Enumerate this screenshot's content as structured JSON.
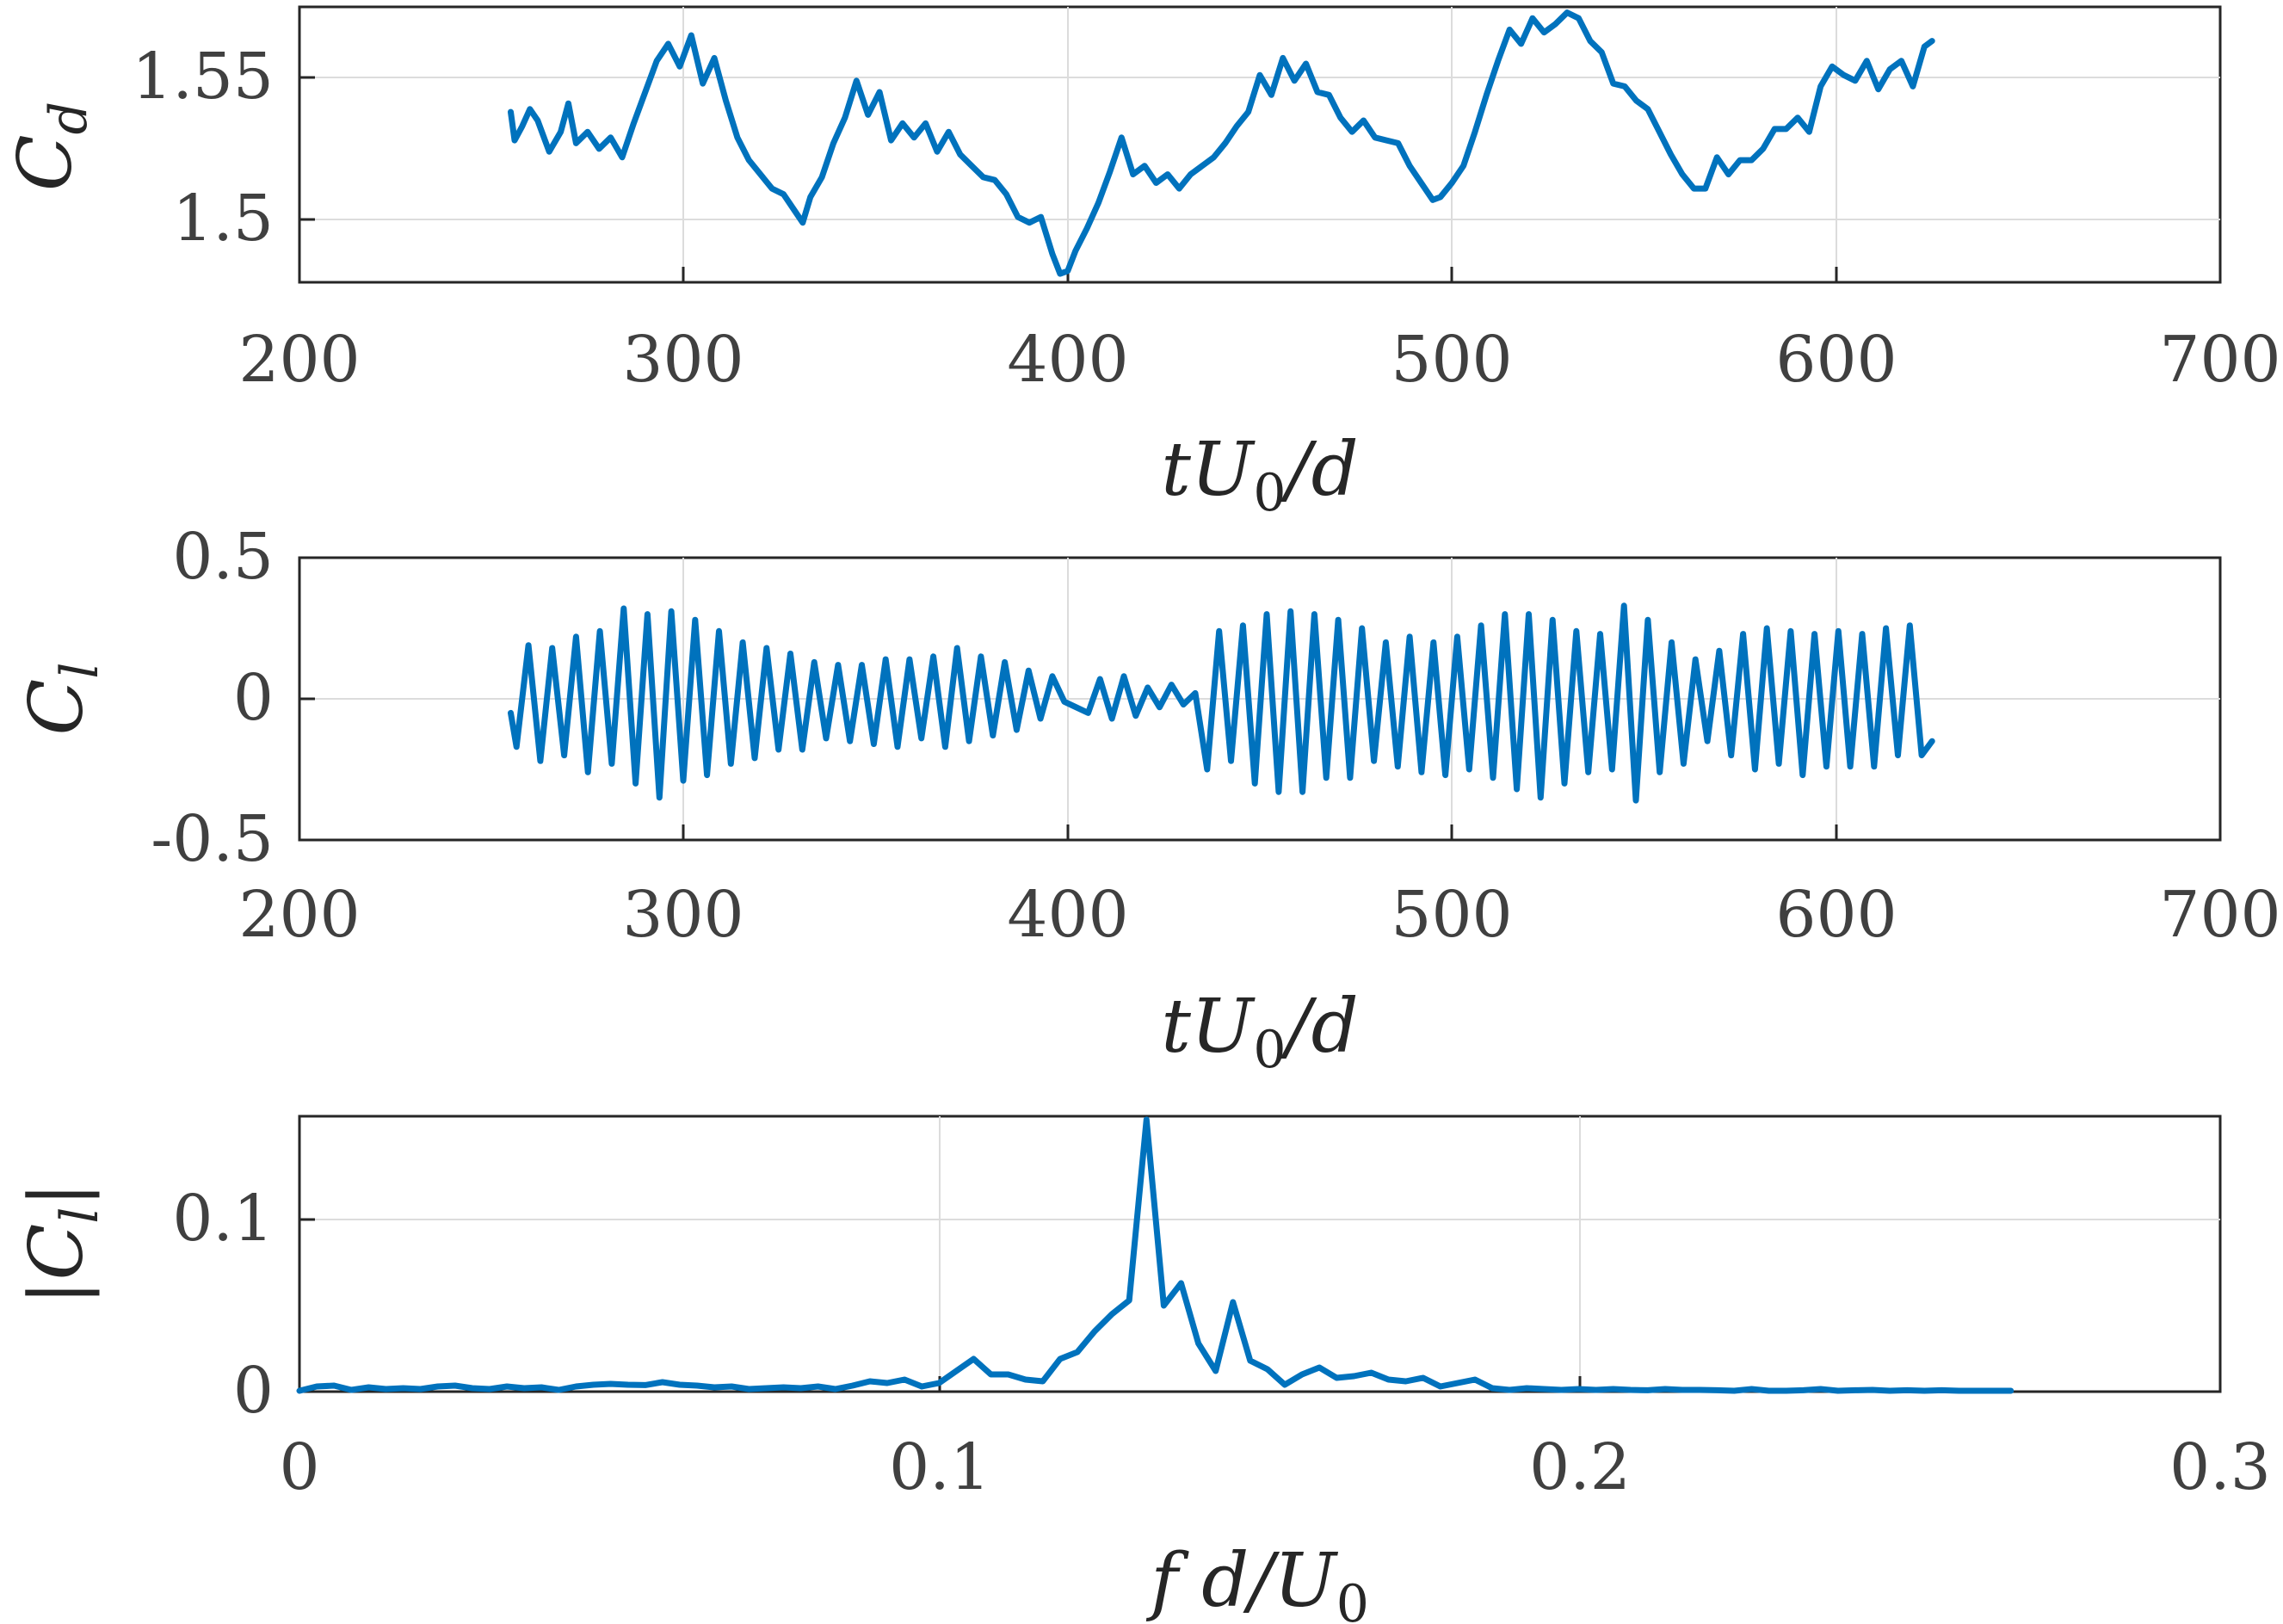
{
  "style": {
    "line_color": "#0072bd",
    "grid": "on"
  },
  "chart_data": [
    {
      "type": "line",
      "id": "cd",
      "xlabel": "tU_0/d",
      "ylabel": "C_d",
      "xlim": [
        200,
        700
      ],
      "ylim": [
        1.478,
        1.575
      ],
      "xticks": [
        200,
        300,
        400,
        500,
        600,
        700
      ],
      "xtick_labels": [
        "200",
        "300",
        "400",
        "500",
        "600",
        "700"
      ],
      "yticks": [
        1.5,
        1.55
      ],
      "ytick_labels": [
        "1.5",
        "1.55"
      ],
      "series": [
        {
          "x": [
            255,
            256,
            258,
            260,
            262,
            265,
            268,
            270,
            272,
            275,
            278,
            281,
            284,
            287,
            290,
            293,
            296,
            299,
            302,
            305,
            308,
            311,
            314,
            317,
            320,
            323,
            326,
            329,
            331,
            333,
            336,
            339,
            342,
            345,
            348,
            351,
            354,
            357,
            360,
            363,
            366,
            369,
            372,
            375,
            378,
            381,
            384,
            387,
            390,
            393,
            396,
            398,
            400,
            402,
            405,
            408,
            411,
            414,
            417,
            420,
            423,
            426,
            429,
            432,
            435,
            438,
            441,
            444,
            447,
            450,
            453,
            456,
            459,
            462,
            465,
            468,
            471,
            474,
            477,
            480,
            483,
            486,
            489,
            492,
            495,
            497,
            500,
            503,
            506,
            509,
            512,
            515,
            518,
            521,
            524,
            527,
            530,
            533,
            536,
            539,
            542,
            545,
            548,
            551,
            554,
            557,
            560,
            563,
            566,
            569,
            572,
            575,
            578,
            581,
            584,
            587,
            590,
            593,
            596,
            599,
            602,
            605,
            608,
            611,
            614,
            617,
            620,
            623,
            625
          ],
          "y": [
            1.538,
            1.528,
            1.533,
            1.539,
            1.535,
            1.524,
            1.531,
            1.541,
            1.527,
            1.531,
            1.525,
            1.529,
            1.522,
            1.534,
            1.545,
            1.556,
            1.562,
            1.554,
            1.565,
            1.548,
            1.557,
            1.542,
            1.529,
            1.521,
            1.516,
            1.511,
            1.509,
            1.503,
            1.499,
            1.508,
            1.515,
            1.527,
            1.536,
            1.549,
            1.537,
            1.545,
            1.528,
            1.534,
            1.529,
            1.534,
            1.524,
            1.531,
            1.523,
            1.519,
            1.515,
            1.514,
            1.509,
            1.501,
            1.499,
            1.501,
            1.488,
            1.481,
            1.482,
            1.489,
            1.497,
            1.506,
            1.517,
            1.529,
            1.516,
            1.519,
            1.513,
            1.516,
            1.511,
            1.516,
            1.519,
            1.522,
            1.527,
            1.533,
            1.538,
            1.551,
            1.544,
            1.557,
            1.549,
            1.555,
            1.545,
            1.544,
            1.536,
            1.531,
            1.535,
            1.529,
            1.528,
            1.527,
            1.519,
            1.513,
            1.507,
            1.508,
            1.513,
            1.519,
            1.531,
            1.544,
            1.556,
            1.567,
            1.562,
            1.571,
            1.566,
            1.569,
            1.573,
            1.571,
            1.563,
            1.559,
            1.548,
            1.547,
            1.542,
            1.539,
            1.531,
            1.523,
            1.516,
            1.511,
            1.511,
            1.522,
            1.516,
            1.521,
            1.521,
            1.525,
            1.532,
            1.532,
            1.536,
            1.531,
            1.547,
            1.554,
            1.551,
            1.549,
            1.556,
            1.546,
            1.553,
            1.556,
            1.547,
            1.561,
            1.563
          ]
        }
      ]
    },
    {
      "type": "line",
      "id": "cl",
      "xlabel": "tU_0/d",
      "ylabel": "C_l",
      "xlim": [
        200,
        700
      ],
      "ylim": [
        -0.5,
        0.5
      ],
      "xticks": [
        200,
        300,
        400,
        500,
        600,
        700
      ],
      "xtick_labels": [
        "200",
        "300",
        "400",
        "500",
        "600",
        "700"
      ],
      "yticks": [
        -0.5,
        0,
        0.5
      ],
      "ytick_labels": [
        "-0.5",
        "0",
        "0.5"
      ],
      "series": [
        {
          "x": [
            255,
            256.5,
            259.6,
            262.7,
            265.8,
            268.9,
            272.0,
            275.1,
            278.2,
            281.3,
            284.4,
            287.5,
            290.6,
            293.7,
            296.8,
            299.9,
            303.0,
            306.1,
            309.2,
            312.3,
            315.4,
            318.5,
            321.6,
            324.7,
            327.8,
            330.9,
            334.0,
            337.1,
            340.2,
            343.3,
            346.4,
            349.5,
            352.6,
            355.7,
            358.8,
            361.9,
            365.0,
            368.1,
            371.2,
            374.3,
            377.4,
            380.5,
            383.6,
            386.7,
            389.8,
            392.9,
            396.0,
            399.1,
            402.2,
            405.3,
            408.4,
            411.5,
            414.6,
            417.7,
            420.8,
            423.9,
            427.0,
            430.1,
            433.2,
            436.3,
            439.4,
            442.5,
            445.6,
            448.7,
            451.8,
            454.9,
            458.0,
            461.1,
            464.2,
            467.3,
            470.4,
            473.5,
            476.6,
            479.7,
            482.8,
            485.9,
            489.0,
            492.1,
            495.2,
            498.3,
            501.4,
            504.5,
            507.6,
            510.7,
            513.8,
            516.9,
            520.0,
            523.1,
            526.2,
            529.3,
            532.4,
            535.5,
            538.6,
            541.7,
            544.8,
            547.9,
            551.0,
            554.1,
            557.2,
            560.3,
            563.4,
            566.5,
            569.6,
            572.7,
            575.8,
            578.9,
            582.0,
            585.1,
            588.2,
            591.3,
            594.4,
            597.5,
            600.6,
            603.7,
            606.8,
            609.9,
            613.0,
            616.1,
            619.2,
            622.3,
            625
          ],
          "y": [
            -0.05,
            -0.17,
            0.19,
            -0.22,
            0.18,
            -0.2,
            0.22,
            -0.26,
            0.24,
            -0.23,
            0.32,
            -0.3,
            0.3,
            -0.35,
            0.31,
            -0.29,
            0.28,
            -0.27,
            0.24,
            -0.23,
            0.2,
            -0.21,
            0.18,
            -0.18,
            0.16,
            -0.18,
            0.13,
            -0.14,
            0.12,
            -0.15,
            0.12,
            -0.16,
            0.14,
            -0.17,
            0.14,
            -0.14,
            0.15,
            -0.17,
            0.18,
            -0.15,
            0.15,
            -0.13,
            0.13,
            -0.11,
            0.1,
            -0.07,
            0.08,
            -0.01,
            -0.03,
            -0.05,
            0.07,
            -0.07,
            0.08,
            -0.06,
            0.04,
            -0.03,
            0.05,
            -0.02,
            0.02,
            -0.25,
            0.24,
            -0.22,
            0.26,
            -0.3,
            0.3,
            -0.33,
            0.31,
            -0.33,
            0.3,
            -0.28,
            0.28,
            -0.28,
            0.25,
            -0.22,
            0.2,
            -0.24,
            0.22,
            -0.26,
            0.2,
            -0.27,
            0.22,
            -0.25,
            0.26,
            -0.28,
            0.3,
            -0.32,
            0.3,
            -0.35,
            0.28,
            -0.3,
            0.24,
            -0.26,
            0.23,
            -0.25,
            0.33,
            -0.36,
            0.28,
            -0.26,
            0.2,
            -0.23,
            0.14,
            -0.15,
            0.17,
            -0.2,
            0.23,
            -0.25,
            0.25,
            -0.23,
            0.24,
            -0.27,
            0.23,
            -0.24,
            0.24,
            -0.24,
            0.23,
            -0.24,
            0.25,
            -0.2,
            0.26,
            -0.2,
            -0.15
          ]
        }
      ]
    },
    {
      "type": "line",
      "id": "spectrum",
      "xlabel": "fd/U_0",
      "ylabel": "|C_l|",
      "xlim": [
        0,
        0.3
      ],
      "ylim": [
        0,
        0.16
      ],
      "xticks": [
        0,
        0.1,
        0.2,
        0.3
      ],
      "xtick_labels": [
        "0",
        "0.1",
        "0.2",
        "0.3"
      ],
      "yticks": [
        0,
        0.1
      ],
      "ytick_labels": [
        "0",
        "0.1"
      ],
      "series": [
        {
          "x": [
            0,
            0.0027,
            0.0054,
            0.0081,
            0.0108,
            0.0135,
            0.0162,
            0.0189,
            0.0216,
            0.0243,
            0.027,
            0.0297,
            0.0324,
            0.0351,
            0.0378,
            0.0405,
            0.0432,
            0.0459,
            0.0486,
            0.0513,
            0.054,
            0.0567,
            0.0594,
            0.0621,
            0.0648,
            0.0675,
            0.0702,
            0.0729,
            0.0756,
            0.0783,
            0.081,
            0.0837,
            0.0864,
            0.0891,
            0.0918,
            0.0945,
            0.0972,
            0.0999,
            0.1026,
            0.1053,
            0.108,
            0.1107,
            0.1134,
            0.1161,
            0.1188,
            0.1215,
            0.1242,
            0.1269,
            0.1296,
            0.1323,
            0.135,
            0.1377,
            0.1404,
            0.1431,
            0.1458,
            0.1485,
            0.1512,
            0.1539,
            0.1566,
            0.1593,
            0.162,
            0.1647,
            0.1674,
            0.1701,
            0.1728,
            0.1755,
            0.1782,
            0.1809,
            0.1836,
            0.1863,
            0.189,
            0.1917,
            0.1944,
            0.1971,
            0.1998,
            0.2025,
            0.2052,
            0.2079,
            0.2106,
            0.2133,
            0.216,
            0.2187,
            0.2214,
            0.2241,
            0.2268,
            0.2295,
            0.2322,
            0.2349,
            0.2376,
            0.2403,
            0.243,
            0.2457,
            0.2484,
            0.2511,
            0.2538,
            0.2565,
            0.2592,
            0.2619,
            0.2646,
            0.2673
          ],
          "y": [
            0.0005,
            0.003,
            0.0035,
            0.001,
            0.0025,
            0.0015,
            0.002,
            0.0015,
            0.003,
            0.0035,
            0.002,
            0.0015,
            0.003,
            0.002,
            0.0025,
            0.001,
            0.003,
            0.004,
            0.0045,
            0.004,
            0.0038,
            0.0055,
            0.004,
            0.0035,
            0.0025,
            0.003,
            0.0015,
            0.002,
            0.0025,
            0.002,
            0.003,
            0.0015,
            0.0035,
            0.006,
            0.005,
            0.007,
            0.003,
            0.005,
            0.012,
            0.019,
            0.01,
            0.01,
            0.007,
            0.006,
            0.019,
            0.023,
            0.035,
            0.045,
            0.053,
            0.158,
            0.05,
            0.063,
            0.028,
            0.012,
            0.052,
            0.018,
            0.013,
            0.004,
            0.01,
            0.014,
            0.008,
            0.009,
            0.011,
            0.007,
            0.006,
            0.008,
            0.003,
            0.005,
            0.007,
            0.002,
            0.001,
            0.002,
            0.0015,
            0.001,
            0.0015,
            0.001,
            0.0015,
            0.001,
            0.0008,
            0.0015,
            0.001,
            0.001,
            0.0008,
            0.0005,
            0.0015,
            0.0005,
            0.0005,
            0.0008,
            0.0015,
            0.0005,
            0.0008,
            0.001,
            0.0005,
            0.0008,
            0.0005,
            0.0008,
            0.0005,
            0.0005,
            0.0005,
            0.0005
          ]
        }
      ]
    }
  ]
}
